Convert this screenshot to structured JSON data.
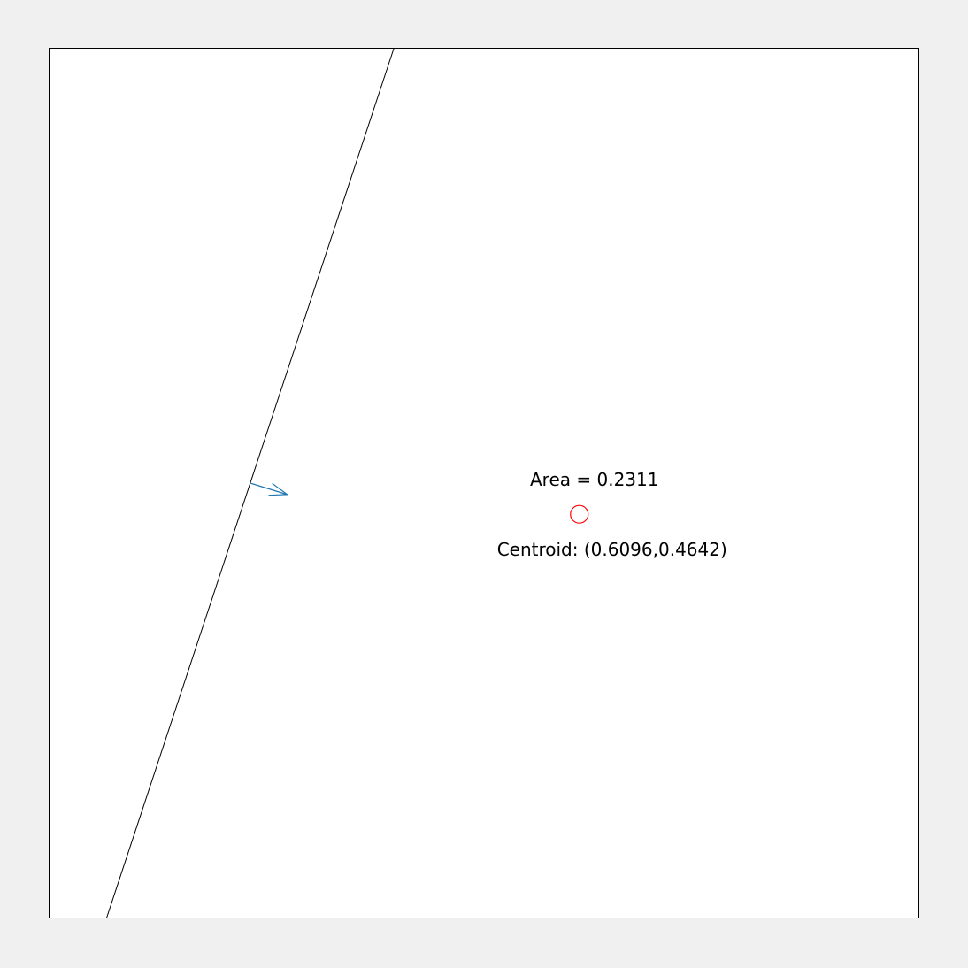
{
  "colors": {
    "figure_background": "#f0f0f0",
    "plot_background": "#ffffff",
    "axes_border": "#000000",
    "boundary_line": "#000000",
    "normal_arrow": "#1f77b4",
    "centroid_marker": "#ff0000"
  },
  "annotations": {
    "area_label": "Area = 0.2311",
    "centroid_label": "Centroid: (0.6096,0.4642)"
  },
  "chart_data": {
    "type": "scatter",
    "xlim": [
      0,
      1
    ],
    "ylim": [
      0,
      1
    ],
    "grid": false,
    "boundary_line": {
      "points": [
        [
          0.0661,
          0.0
        ],
        [
          0.3964,
          1.0
        ]
      ]
    },
    "normal_arrow": {
      "start": [
        0.2312,
        0.5
      ],
      "end": [
        0.2738,
        0.4869
      ]
    },
    "centroid": {
      "x": 0.6096,
      "y": 0.4642,
      "marker": "circle"
    }
  }
}
